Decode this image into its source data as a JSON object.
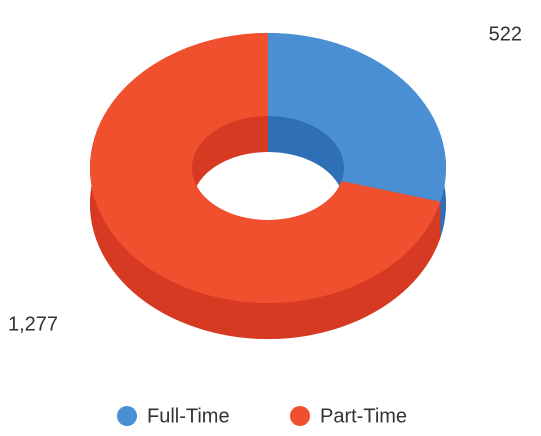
{
  "chart_data": {
    "type": "donut",
    "categories": [
      "Full-Time",
      "Part-Time"
    ],
    "values": [
      522,
      1277
    ],
    "value_labels": [
      "522",
      "1,277"
    ],
    "colors": [
      "#4a8fd4",
      "#f0502d"
    ],
    "side_colors": [
      "#2f6fb5",
      "#d63a22"
    ]
  }
}
